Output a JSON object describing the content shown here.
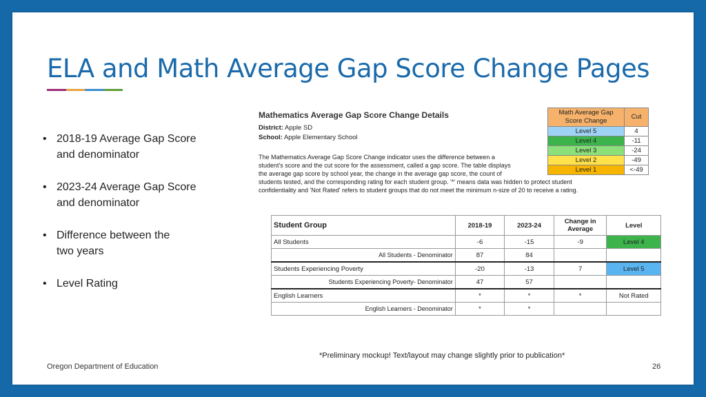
{
  "title": "ELA and Math Average Gap Score Change Pages",
  "title_bar_colors": [
    "#9b2c7a",
    "#e8a33c",
    "#3a8ed1",
    "#5e9e3c"
  ],
  "bullets": [
    {
      "line1": "2018-19 Average Gap Score",
      "line2": "and denominator"
    },
    {
      "line1": "2023-24 Average Gap Score",
      "line2": "and denominator"
    },
    {
      "line1": "Difference between the",
      "line2": "two years"
    },
    {
      "line1": "Level Rating",
      "line2": ""
    }
  ],
  "detail": {
    "title": "Mathematics Average Gap Score Change Details",
    "district_label": "District:",
    "district": "Apple SD",
    "school_label": "School:",
    "school": "Apple Elementary School",
    "desc_lines": [
      "The Mathematics Average Gap Score Change indicator uses the difference between a",
      "student's score and the cut score for the assessment, called a gap score. The table displays",
      "the average gap score by school year, the change in the average gap score, the count of",
      "students tested, and the corresponding rating for each student group. '*' means data was hidden to protect student",
      "confidentiality and 'Not Rated' refers to student groups that do not meet the minimum n-size of 20 to receive a rating."
    ]
  },
  "cut_table": {
    "header_change": "Math Average Gap Score Change",
    "header_cut": "Cut",
    "rows": [
      {
        "level": "Level 5",
        "cut": "4",
        "color": "#9fd3f5"
      },
      {
        "level": "Level 4",
        "cut": "-11",
        "color": "#3cb44b"
      },
      {
        "level": "Level 3",
        "cut": "-24",
        "color": "#8be07a"
      },
      {
        "level": "Level 2",
        "cut": "-49",
        "color": "#ffe14a"
      },
      {
        "level": "Level 1",
        "cut": "<-49",
        "color": "#f7b500"
      }
    ]
  },
  "main_table": {
    "headers": {
      "group": "Student Group",
      "y1": "2018-19",
      "y2": "2023-24",
      "change": "Change in Average",
      "level": "Level"
    },
    "all": {
      "group": "All Students",
      "y1": "-6",
      "y2": "-15",
      "change": "-9",
      "level": "Level 4"
    },
    "all_den": {
      "group": "All Students - Denominator",
      "y1": "87",
      "y2": "84"
    },
    "pov": {
      "group": "Students Experiencing Poverty",
      "y1": "-20",
      "y2": "-13",
      "change": "7",
      "level": "Level 5"
    },
    "pov_den": {
      "group": "Students Experiencing Poverty- Denominator",
      "y1": "47",
      "y2": "57"
    },
    "el": {
      "group": "English Learners",
      "y1": "*",
      "y2": "*",
      "change": "*",
      "level": "Not Rated"
    },
    "el_den": {
      "group": "English Learners - Denominator",
      "y1": "*",
      "y2": "*"
    }
  },
  "note": "*Preliminary mockup! Text/layout may change slightly prior to publication*",
  "footer": "Oregon Department of Education",
  "page_number": "26"
}
